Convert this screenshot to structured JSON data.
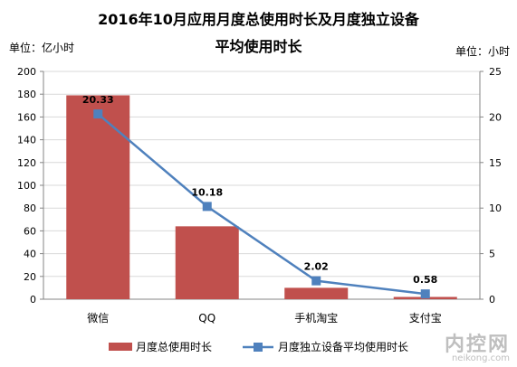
{
  "title_line1": "2016年10月应用月度总使用时长及月度独立设备",
  "title_line2": "平均使用时长",
  "unit_left": "单位：亿小时",
  "unit_right": "单位：小时",
  "watermark": {
    "main": "内控网",
    "sub": "neikong.com"
  },
  "colors": {
    "bar": "#c0504d",
    "line": "#4f81bd",
    "grid": "#d9d9d9",
    "axis": "#868686"
  },
  "chart_data": {
    "type": "bar+line",
    "categories": [
      "微信",
      "QQ",
      "手机淘宝",
      "支付宝"
    ],
    "series": [
      {
        "name": "月度总使用时长",
        "type": "bar",
        "axis": "left",
        "values": [
          179,
          64,
          10,
          2
        ]
      },
      {
        "name": "月度独立设备平均使用时长",
        "type": "line",
        "axis": "right",
        "values": [
          20.33,
          10.18,
          2.02,
          0.58
        ],
        "labels": [
          "20.33",
          "10.18",
          "2.02",
          "0.58"
        ]
      }
    ],
    "y_left": {
      "min": 0,
      "max": 200,
      "ticks": [
        "0",
        "20",
        "40",
        "60",
        "80",
        "100",
        "120",
        "140",
        "160",
        "180",
        "200"
      ]
    },
    "y_right": {
      "min": 0,
      "max": 25,
      "ticks": [
        "0",
        "5",
        "10",
        "15",
        "20",
        "25"
      ]
    },
    "grid": true,
    "legend": "bottom"
  }
}
